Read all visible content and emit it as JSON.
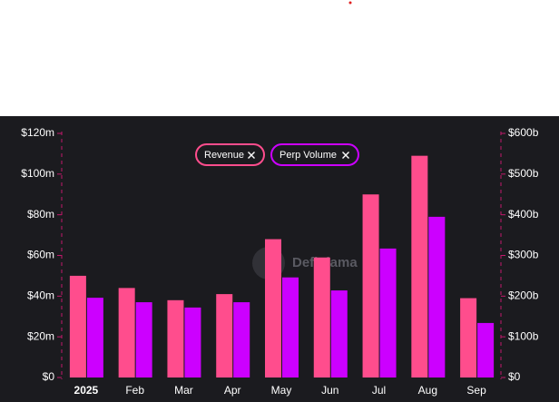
{
  "chart_data": {
    "type": "bar",
    "categories": [
      "2025",
      "Feb",
      "Mar",
      "Apr",
      "May",
      "Jun",
      "Jul",
      "Aug",
      "Sep"
    ],
    "series": [
      {
        "name": "Revenue",
        "color": "#ff4d8d",
        "values": [
          50,
          44,
          38,
          41,
          68,
          59,
          90,
          109,
          39
        ]
      },
      {
        "name": "Perp Volume",
        "color": "#cc00ff",
        "axis": "y2",
        "values": [
          196,
          185,
          172,
          185,
          246,
          214,
          317,
          395,
          134
        ]
      }
    ],
    "ylim": [
      0,
      120
    ],
    "yticks": [
      {
        "value": 0,
        "label": "$0"
      },
      {
        "value": 20,
        "label": "$20m"
      },
      {
        "value": 40,
        "label": "$40m"
      },
      {
        "value": 60,
        "label": "$60m"
      },
      {
        "value": 80,
        "label": "$80m"
      },
      {
        "value": 100,
        "label": "$100m"
      },
      {
        "value": 120,
        "label": "$120m"
      }
    ],
    "y2lim": [
      0,
      600
    ],
    "y2ticks": [
      {
        "value": 0,
        "label": "$0"
      },
      {
        "value": 100,
        "label": "$100b"
      },
      {
        "value": 200,
        "label": "$200b"
      },
      {
        "value": 300,
        "label": "$300b"
      },
      {
        "value": 400,
        "label": "$400b"
      },
      {
        "value": 500,
        "label": "$500b"
      },
      {
        "value": 600,
        "label": "$600b"
      }
    ],
    "watermark": "DefiLlama"
  }
}
